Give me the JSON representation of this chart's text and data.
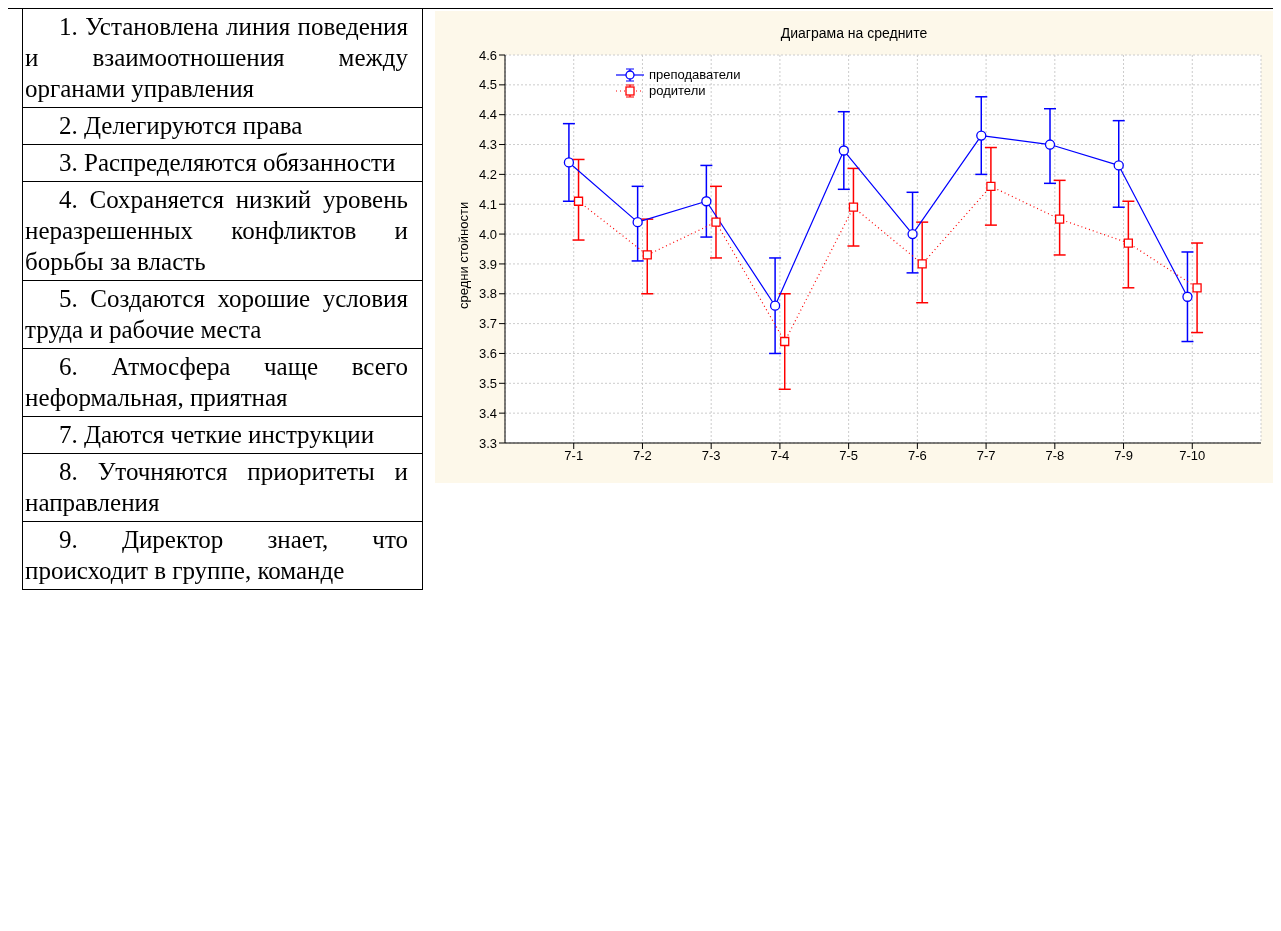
{
  "chart_data": {
    "type": "line",
    "title": "Диаграма на средните",
    "ylabel": "средни стойности",
    "categories": [
      "7-1",
      "7-2",
      "7-3",
      "7-4",
      "7-5",
      "7-6",
      "7-7",
      "7-8",
      "7-9",
      "7-10"
    ],
    "series": [
      {
        "name": "преподаватели",
        "color": "#0000ff",
        "marker": "circle",
        "line_style": "solid",
        "values": [
          4.24,
          4.04,
          4.11,
          3.76,
          4.28,
          4.0,
          4.33,
          4.3,
          4.23,
          3.79
        ],
        "errors": [
          [
            4.11,
            4.37
          ],
          [
            3.91,
            4.16
          ],
          [
            3.99,
            4.23
          ],
          [
            3.6,
            3.92
          ],
          [
            4.15,
            4.41
          ],
          [
            3.87,
            4.14
          ],
          [
            4.2,
            4.46
          ],
          [
            4.17,
            4.42
          ],
          [
            4.09,
            4.38
          ],
          [
            3.64,
            3.94
          ]
        ]
      },
      {
        "name": "родители",
        "color": "#ff0000",
        "marker": "square",
        "line_style": "dotted",
        "values": [
          4.11,
          3.93,
          4.04,
          3.64,
          4.09,
          3.9,
          4.16,
          4.05,
          3.97,
          3.82
        ],
        "errors": [
          [
            3.98,
            4.25
          ],
          [
            3.8,
            4.05
          ],
          [
            3.92,
            4.16
          ],
          [
            3.48,
            3.8
          ],
          [
            3.96,
            4.22
          ],
          [
            3.77,
            4.04
          ],
          [
            4.03,
            4.29
          ],
          [
            3.93,
            4.18
          ],
          [
            3.82,
            4.11
          ],
          [
            3.67,
            3.97
          ]
        ]
      }
    ],
    "ylim": [
      3.3,
      4.6
    ],
    "yticks": [
      {
        "value": 3.3,
        "label": "3.3"
      },
      {
        "value": 3.4,
        "label": "3.4"
      },
      {
        "value": 3.5,
        "label": "3.5"
      },
      {
        "value": 3.6,
        "label": "3.6"
      },
      {
        "value": 3.7,
        "label": "3.7"
      },
      {
        "value": 3.8,
        "label": "3.8"
      },
      {
        "value": 3.9,
        "label": "3.9"
      },
      {
        "value": 4.0,
        "label": "4.0"
      },
      {
        "value": 4.1,
        "label": "4.1"
      },
      {
        "value": 4.2,
        "label": "4.2"
      },
      {
        "value": 4.3,
        "label": "4.3"
      },
      {
        "value": 4.4,
        "label": "4.4"
      },
      {
        "value": 4.5,
        "label": "4.5"
      },
      {
        "value": 4.6,
        "label": "4.6"
      }
    ],
    "grid": true,
    "legend": "top left",
    "annotations": [
      "1. Установлена линия поведения и взаимоотношения между органами управления",
      "2. Делегируются права",
      "3. Распределяются обязанности",
      "4. Сохраняется низкий уровень неразрешенных конфликтов и борьбы за власть",
      "5. Создаются хорошие условия труда и рабочие места",
      "6. Атмосфера чаще всего неформальная, приятная",
      "7. Даются четкие инструкции",
      "8. Уточняются приоритеты и направления",
      "9. Директор знает, что происходит в группе, команде"
    ]
  }
}
